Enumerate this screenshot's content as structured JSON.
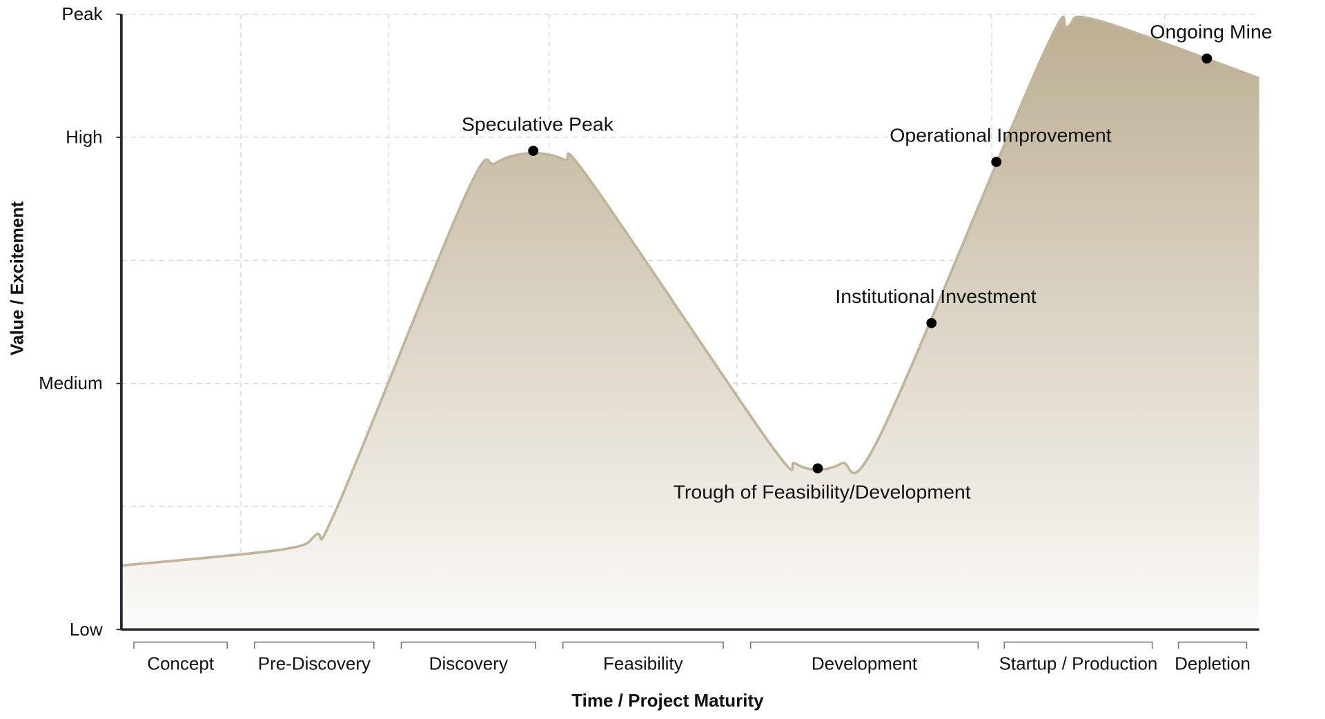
{
  "chart_data": {
    "type": "area",
    "title": "",
    "xlabel": "Time / Project Maturity",
    "ylabel": "Value / Excitement",
    "xlim": [
      0,
      100
    ],
    "ylim": [
      0,
      5
    ],
    "grid": true,
    "y_ticks": [
      {
        "value": 0,
        "label": "Low"
      },
      {
        "value": 1,
        "label": ""
      },
      {
        "value": 2,
        "label": "Medium"
      },
      {
        "value": 3,
        "label": ""
      },
      {
        "value": 4,
        "label": "High"
      },
      {
        "value": 5,
        "label": "Peak"
      }
    ],
    "x_gridlines": [
      10.5,
      23.5,
      37.6,
      54.1,
      76.5,
      91.7
    ],
    "curve": {
      "x": [
        0,
        14.1,
        17.1,
        19.0,
        30.3,
        32.9,
        35.9,
        38.9,
        41.2,
        57.0,
        59.2,
        61.1,
        63.3,
        66.7,
        81.0,
        83.2,
        85.8,
        100
      ],
      "y": [
        0.52,
        0.65,
        0.77,
        1.0,
        3.54,
        3.79,
        3.87,
        3.82,
        3.65,
        1.51,
        1.35,
        1.3,
        1.35,
        1.58,
        4.67,
        4.9,
        4.95,
        4.48
      ]
    },
    "annotations": [
      {
        "label": "Speculative Peak",
        "x": 36.2,
        "y": 3.89,
        "pos": "above"
      },
      {
        "label": "Trough of Feasibility/Development",
        "x": 61.2,
        "y": 1.31,
        "pos": "below"
      },
      {
        "label": "Institutional Investment",
        "x": 71.2,
        "y": 2.49,
        "pos": "above"
      },
      {
        "label": "Operational Improvement",
        "x": 76.9,
        "y": 3.8,
        "pos": "above"
      },
      {
        "label": "Ongoing Mine",
        "x": 95.4,
        "y": 4.64,
        "pos": "above"
      }
    ],
    "phases": [
      {
        "label": "Concept",
        "start": 1.1,
        "end": 9.3
      },
      {
        "label": "Pre-Discovery",
        "start": 11.7,
        "end": 22.2
      },
      {
        "label": "Discovery",
        "start": 24.6,
        "end": 36.4
      },
      {
        "label": "Feasibility",
        "start": 38.8,
        "end": 52.9
      },
      {
        "label": "Development",
        "start": 55.3,
        "end": 75.3
      },
      {
        "label": "Startup / Production",
        "start": 77.6,
        "end": 90.6
      },
      {
        "label": "Depletion",
        "start": 92.9,
        "end": 98.9
      }
    ],
    "colors": {
      "fill_top": "#bcae92",
      "fill_bottom": "#fcfbf9",
      "line": "#c2b49a",
      "axis": "#222630",
      "grid": "#d9d9d9",
      "marker": "#000000"
    }
  }
}
